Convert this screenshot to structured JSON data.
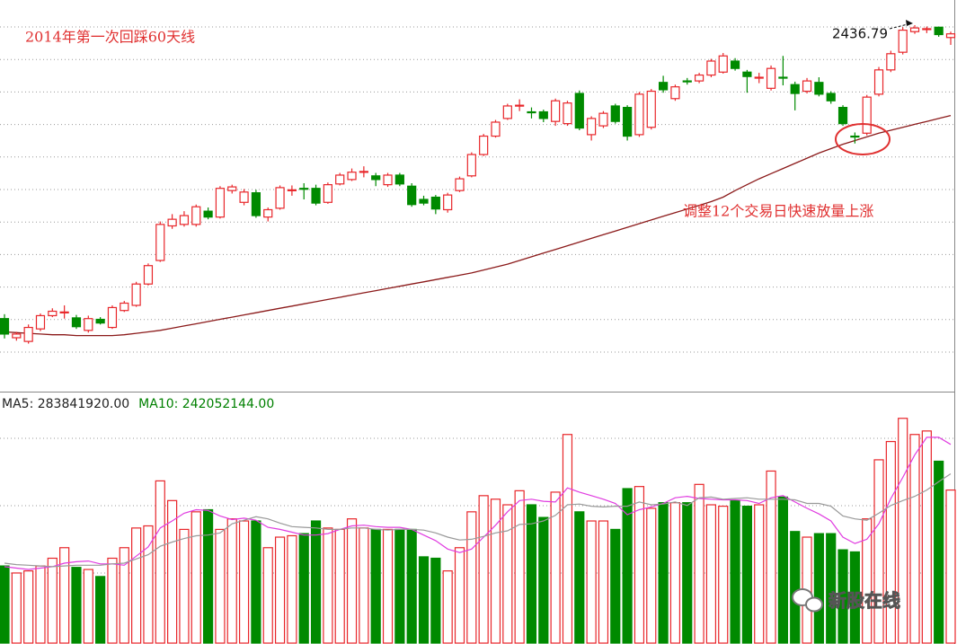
{
  "chart_data": [
    {
      "type": "candlestick",
      "annotations": [
        "2014年第一次回踩60天线",
        "调整12个交易日快速放量上涨"
      ],
      "up_color": "#e8262a",
      "down_color": "#008a00",
      "ylim": [
        1940,
        2471
      ],
      "open": [
        2038,
        2012,
        2007,
        2024,
        2042,
        2046,
        2039,
        2022,
        2037,
        2026,
        2049,
        2056,
        2085,
        2117,
        2164,
        2166,
        2166,
        2184,
        2176,
        2212,
        2196,
        2209,
        2176,
        2188,
        2212,
        2215,
        2215,
        2196,
        2221,
        2227,
        2237,
        2232,
        2220,
        2233,
        2218,
        2200,
        2203,
        2186,
        2212,
        2232,
        2261,
        2286,
        2310,
        2327,
        2319,
        2319,
        2306,
        2303,
        2344,
        2288,
        2300,
        2327,
        2325,
        2288,
        2298,
        2359,
        2337,
        2361,
        2361,
        2369,
        2373,
        2388,
        2373,
        2366,
        2351,
        2366,
        2356,
        2347,
        2359,
        2344,
        2325,
        2286,
        2290,
        2343,
        2376,
        2400,
        2428,
        2431,
        2434,
        2420
      ],
      "high": [
        2044,
        2020,
        2030,
        2045,
        2052,
        2056,
        2043,
        2042,
        2040,
        2056,
        2062,
        2088,
        2113,
        2170,
        2180,
        2184,
        2193,
        2189,
        2218,
        2220,
        2214,
        2213,
        2189,
        2219,
        2219,
        2222,
        2220,
        2223,
        2236,
        2242,
        2245,
        2236,
        2236,
        2236,
        2222,
        2205,
        2206,
        2209,
        2231,
        2264,
        2289,
        2308,
        2330,
        2336,
        2325,
        2322,
        2337,
        2334,
        2348,
        2313,
        2320,
        2330,
        2328,
        2346,
        2350,
        2368,
        2356,
        2365,
        2372,
        2391,
        2399,
        2392,
        2376,
        2372,
        2382,
        2395,
        2360,
        2365,
        2366,
        2347,
        2328,
        2291,
        2342,
        2380,
        2402,
        2434,
        2436.79,
        2435,
        2435,
        2428
      ],
      "low": [
        2011,
        2008,
        2004,
        2021,
        2040,
        2038,
        2024,
        2019,
        2030,
        2024,
        2047,
        2054,
        2083,
        2115,
        2160,
        2163,
        2163,
        2173,
        2174,
        2208,
        2192,
        2175,
        2170,
        2186,
        2205,
        2200,
        2192,
        2194,
        2219,
        2225,
        2230,
        2218,
        2217,
        2218,
        2190,
        2192,
        2180,
        2182,
        2210,
        2230,
        2259,
        2284,
        2308,
        2320,
        2310,
        2305,
        2300,
        2300,
        2294,
        2280,
        2297,
        2303,
        2280,
        2285,
        2295,
        2345,
        2334,
        2356,
        2358,
        2366,
        2371,
        2375,
        2345,
        2358,
        2348,
        2355,
        2321,
        2344,
        2340,
        2330,
        2300,
        2276,
        2287,
        2340,
        2373,
        2397,
        2425,
        2426,
        2421,
        2410
      ],
      "close": [
        2017,
        2017,
        2026,
        2042,
        2048,
        2047,
        2027,
        2038,
        2032,
        2053,
        2059,
        2085,
        2110,
        2166,
        2173,
        2178,
        2190,
        2176,
        2215,
        2217,
        2210,
        2178,
        2186,
        2216,
        2213,
        2214,
        2195,
        2220,
        2233,
        2237,
        2238,
        2227,
        2233,
        2221,
        2193,
        2195,
        2187,
        2206,
        2228,
        2261,
        2286,
        2305,
        2327,
        2328,
        2318,
        2310,
        2334,
        2331,
        2297,
        2310,
        2317,
        2306,
        2286,
        2343,
        2347,
        2349,
        2353,
        2360,
        2369,
        2388,
        2395,
        2378,
        2367,
        2366,
        2378,
        2365,
        2344,
        2361,
        2343,
        2334,
        2303,
        2285,
        2339,
        2376,
        2398,
        2430,
        2433,
        2432,
        2424,
        2425
      ],
      "ma": {
        "color": "#8b1a1a",
        "values": [
          2020,
          2019,
          2018,
          2017,
          2016,
          2016,
          2015,
          2015,
          2015,
          2015,
          2016,
          2018,
          2020,
          2022,
          2025,
          2028,
          2031,
          2034,
          2037,
          2040,
          2043,
          2046,
          2049,
          2052,
          2055,
          2058,
          2061,
          2064,
          2067,
          2070,
          2073,
          2076,
          2079,
          2082,
          2085,
          2088,
          2091,
          2094,
          2097,
          2100,
          2104,
          2108,
          2112,
          2117,
          2122,
          2127,
          2132,
          2137,
          2142,
          2147,
          2152,
          2157,
          2162,
          2167,
          2172,
          2177,
          2182,
          2187,
          2192,
          2197,
          2203,
          2212,
          2220,
          2228,
          2235,
          2242,
          2249,
          2256,
          2263,
          2269,
          2275,
          2280,
          2285,
          2290,
          2294,
          2298,
          2302,
          2306,
          2310,
          2314
        ]
      }
    },
    {
      "type": "bar",
      "ylim": [
        0,
        359000000.0
      ],
      "values": [
        111000000.0,
        101000000.0,
        104000000.0,
        111000000.0,
        122000000.0,
        137000000.0,
        109000000.0,
        106000000.0,
        96000000.0,
        122000000.0,
        137000000.0,
        165000000.0,
        168000000.0,
        232000000.0,
        204000000.0,
        163000000.0,
        188000000.0,
        191000000.0,
        163000000.0,
        178000000.0,
        175000000.0,
        175000000.0,
        137000000.0,
        152000000.0,
        154000000.0,
        157000000.0,
        175000000.0,
        165000000.0,
        163000000.0,
        178000000.0,
        165000000.0,
        163000000.0,
        163000000.0,
        163000000.0,
        163000000.0,
        124000000.0,
        122000000.0,
        104000000.0,
        137000000.0,
        188000000.0,
        211000000.0,
        206000000.0,
        198000000.0,
        218000000.0,
        198000000.0,
        180000000.0,
        216000000.0,
        298000000.0,
        188000000.0,
        175000000.0,
        175000000.0,
        163000000.0,
        221000000.0,
        224000000.0,
        193000000.0,
        201000000.0,
        201000000.0,
        201000000.0,
        227000000.0,
        198000000.0,
        196000000.0,
        204000000.0,
        196000000.0,
        198000000.0,
        246000000.0,
        209000000.0,
        160000000.0,
        152000000.0,
        157000000.0,
        157000000.0,
        134000000.0,
        131000000.0,
        178000000.0,
        262000000.0,
        288000000.0,
        321000000.0,
        298000000.0,
        303000000.0,
        260000000.0,
        219000000.0
      ],
      "series": [
        {
          "label": "MA5: 283841920.00",
          "color": "#e03ce0",
          "text_color": "#222222",
          "values": [
            110000000.0,
            108000000.0,
            106000000.0,
            108000000.0,
            110000000.0,
            115000000.0,
            117000000.0,
            118000000.0,
            114000000.0,
            114000000.0,
            112000000.0,
            125000000.0,
            138000000.0,
            165000000.0,
            175000000.0,
            186000000.0,
            191000000.0,
            190000000.0,
            182000000.0,
            177000000.0,
            179000000.0,
            176000000.0,
            166000000.0,
            163000000.0,
            159000000.0,
            155000000.0,
            155000000.0,
            157000000.0,
            163000000.0,
            168000000.0,
            169000000.0,
            167000000.0,
            166000000.0,
            166000000.0,
            163000000.0,
            155000000.0,
            147000000.0,
            135000000.0,
            130000000.0,
            135000000.0,
            152000000.0,
            169000000.0,
            188000000.0,
            204000000.0,
            206000000.0,
            203000000.0,
            202000000.0,
            222000000.0,
            216000000.0,
            211000000.0,
            206000000.0,
            200000000.0,
            184000000.0,
            191000000.0,
            195000000.0,
            200000000.0,
            208000000.0,
            210000000.0,
            207000000.0,
            206000000.0,
            205000000.0,
            205000000.0,
            204000000.0,
            200000000.0,
            208000000.0,
            211000000.0,
            202000000.0,
            193000000.0,
            185000000.0,
            175000000.0,
            152000000.0,
            143000000.0,
            149000000.0,
            171000000.0,
            207000000.0,
            237000000.0,
            269000000.0,
            294000000.0,
            294000000.0,
            283841920
          ]
        },
        {
          "label": "MA10: 242052144.00",
          "color": "#999999",
          "text_color": "#008000",
          "values": [
            115000000.0,
            113000000.0,
            112000000.0,
            111000000.0,
            110000000.0,
            111000000.0,
            112000000.0,
            112000000.0,
            112000000.0,
            114000000.0,
            115000000.0,
            121000000.0,
            127000000.0,
            139000000.0,
            145000000.0,
            150000000.0,
            154000000.0,
            155000000.0,
            158000000.0,
            171000000.0,
            176000000.0,
            181000000.0,
            178000000.0,
            172000000.0,
            167000000.0,
            166000000.0,
            165000000.0,
            163000000.0,
            163000000.0,
            165000000.0,
            165000000.0,
            163000000.0,
            162000000.0,
            163000000.0,
            163000000.0,
            162000000.0,
            158000000.0,
            152000000.0,
            148000000.0,
            149000000.0,
            153000000.0,
            158000000.0,
            161000000.0,
            170000000.0,
            171000000.0,
            175000000.0,
            183000000.0,
            198000000.0,
            199000000.0,
            196000000.0,
            195000000.0,
            196000000.0,
            196000000.0,
            202000000.0,
            198000000.0,
            199000000.0,
            202000000.0,
            197000000.0,
            208000000.0,
            209000000.0,
            206000000.0,
            207000000.0,
            208000000.0,
            206000000.0,
            206000000.0,
            206000000.0,
            205000000.0,
            200000000.0,
            200000000.0,
            196000000.0,
            182000000.0,
            178000000.0,
            176000000.0,
            186000000.0,
            197000000.0,
            204000000.0,
            210000000.0,
            219000000.0,
            231000000.0,
            242052144
          ]
        }
      ]
    }
  ],
  "watermark": "新股在线"
}
